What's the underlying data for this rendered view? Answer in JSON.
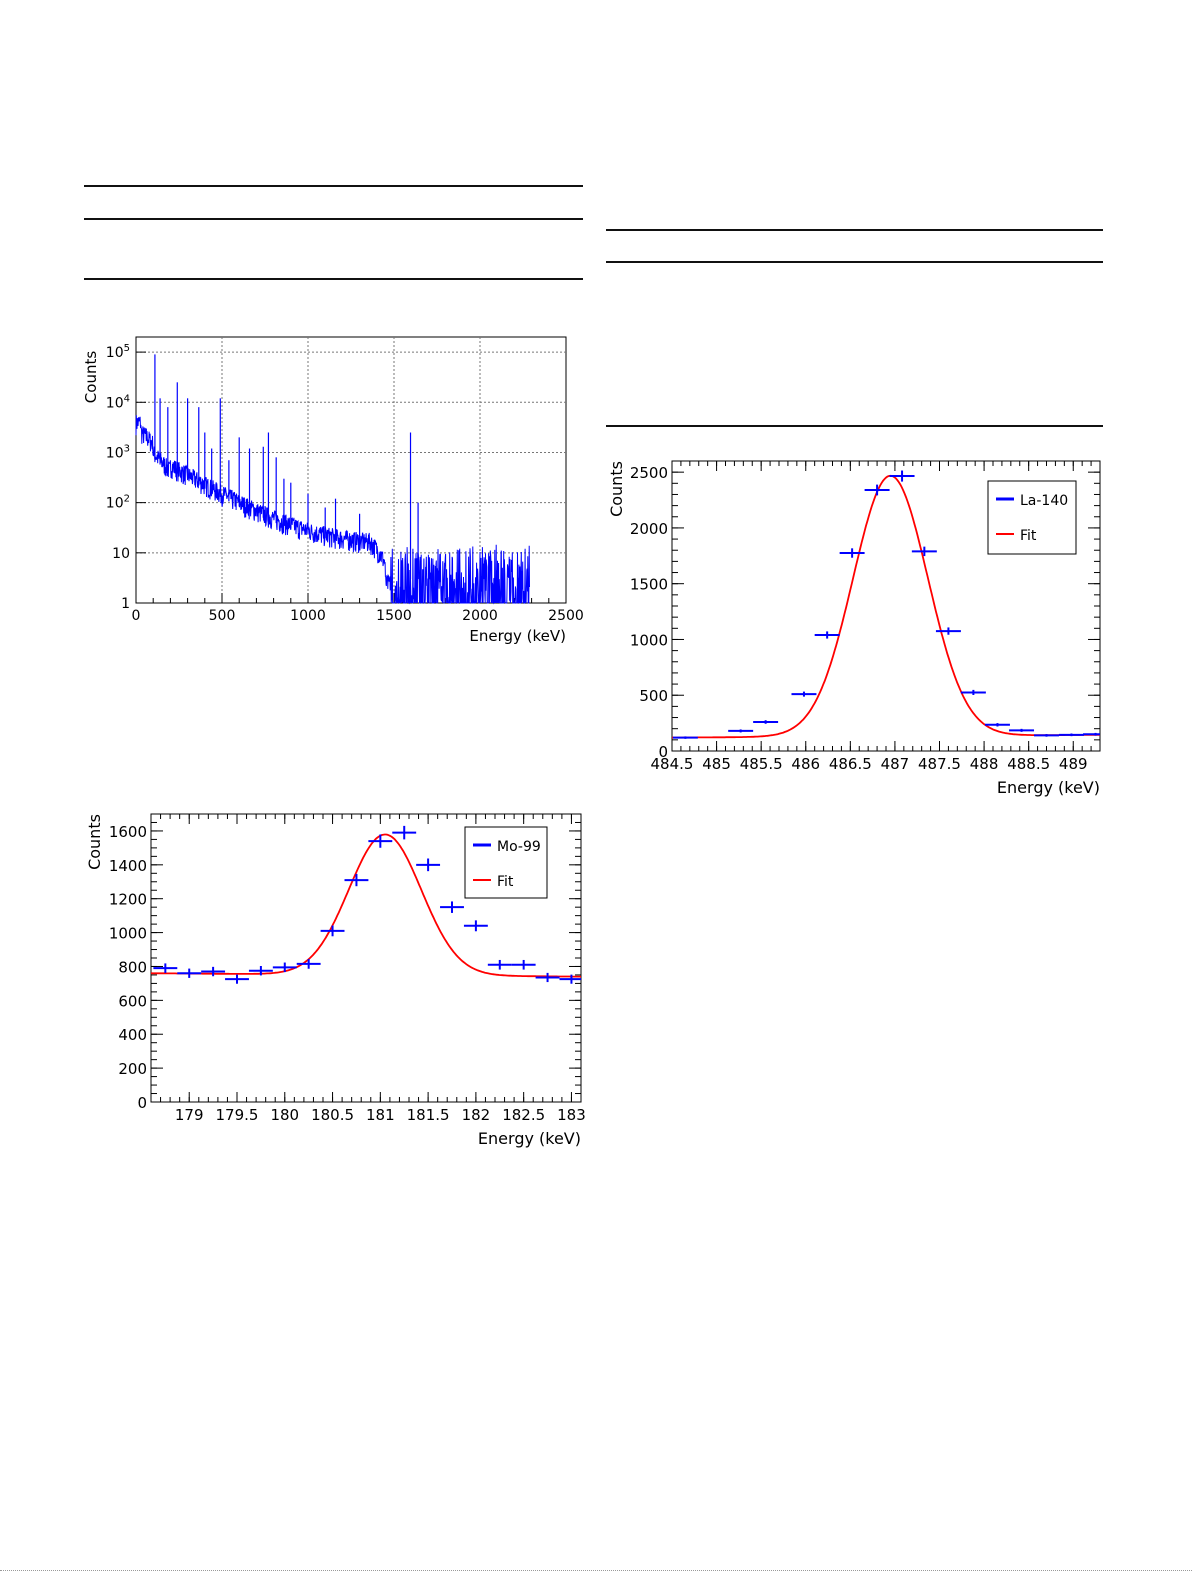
{
  "chart_data": [
    {
      "id": "spectrum",
      "type": "line",
      "ylabel": "Counts",
      "xlabel": "Energy (keV)",
      "xlim": [
        0,
        2500
      ],
      "ylim": [
        1,
        200000
      ],
      "log_y": true,
      "grid": true,
      "x_ticks": [
        "0",
        "500",
        "1000",
        "1500",
        "2000",
        "2500"
      ],
      "y_ticks": [
        "1",
        "10",
        "10^2",
        "10^3",
        "10^4",
        "10^5"
      ],
      "series_color": "#0000ff",
      "peaks": [
        {
          "x": 60,
          "y": 3000
        },
        {
          "x": 110,
          "y": 90000
        },
        {
          "x": 140,
          "y": 12000
        },
        {
          "x": 185,
          "y": 8000
        },
        {
          "x": 240,
          "y": 25000
        },
        {
          "x": 300,
          "y": 12000
        },
        {
          "x": 365,
          "y": 8000
        },
        {
          "x": 400,
          "y": 2500
        },
        {
          "x": 440,
          "y": 1200
        },
        {
          "x": 490,
          "y": 12000
        },
        {
          "x": 540,
          "y": 700
        },
        {
          "x": 600,
          "y": 2000
        },
        {
          "x": 660,
          "y": 1200
        },
        {
          "x": 740,
          "y": 1300
        },
        {
          "x": 770,
          "y": 2500
        },
        {
          "x": 815,
          "y": 800
        },
        {
          "x": 860,
          "y": 300
        },
        {
          "x": 900,
          "y": 250
        },
        {
          "x": 1000,
          "y": 150
        },
        {
          "x": 1100,
          "y": 80
        },
        {
          "x": 1160,
          "y": 120
        },
        {
          "x": 1300,
          "y": 60
        },
        {
          "x": 1596,
          "y": 2500
        },
        {
          "x": 1640,
          "y": 100
        }
      ]
    },
    {
      "id": "mo99",
      "type": "scatter",
      "ylabel": "Counts",
      "xlabel": "Energy (keV)",
      "xlim": [
        178.6,
        183.1
      ],
      "ylim": [
        0,
        1700
      ],
      "x_ticks": [
        179,
        179.5,
        180,
        180.5,
        181,
        181.5,
        182,
        182.5,
        183
      ],
      "y_ticks": [
        0,
        200,
        400,
        600,
        800,
        1000,
        1200,
        1400,
        1600
      ],
      "legend": [
        "Mo-99",
        "Fit"
      ],
      "legend_position": "top-right",
      "point_color": "#0000ff",
      "fit_color": "#ff0000",
      "bin_half_width": 0.125,
      "points": [
        {
          "x": 178.75,
          "y": 790
        },
        {
          "x": 179.0,
          "y": 760
        },
        {
          "x": 179.25,
          "y": 770
        },
        {
          "x": 179.5,
          "y": 725
        },
        {
          "x": 179.75,
          "y": 775
        },
        {
          "x": 180.0,
          "y": 795
        },
        {
          "x": 180.25,
          "y": 815
        },
        {
          "x": 180.5,
          "y": 1010
        },
        {
          "x": 180.75,
          "y": 1310
        },
        {
          "x": 181.0,
          "y": 1540
        },
        {
          "x": 181.25,
          "y": 1590
        },
        {
          "x": 181.5,
          "y": 1400
        },
        {
          "x": 181.75,
          "y": 1150
        },
        {
          "x": 182.0,
          "y": 1040
        },
        {
          "x": 182.25,
          "y": 810
        },
        {
          "x": 182.5,
          "y": 810
        },
        {
          "x": 182.75,
          "y": 735
        },
        {
          "x": 183.0,
          "y": 725
        }
      ],
      "fit": {
        "baseline_left": 760,
        "baseline_right": 740,
        "amplitude": 830,
        "mean": 181.05,
        "sigma": 0.38
      }
    },
    {
      "id": "la140",
      "type": "scatter",
      "ylabel": "Counts",
      "xlabel": "Energy (keV)",
      "xlim": [
        484.5,
        489.3
      ],
      "ylim": [
        0,
        2600
      ],
      "x_ticks": [
        "484.5",
        "485",
        "485.5",
        "486",
        "486.5",
        "487",
        "487.5",
        "488",
        "488.5",
        "489"
      ],
      "y_ticks": [
        0,
        500,
        1000,
        1500,
        2000,
        2500
      ],
      "legend": [
        "La-140",
        "Fit"
      ],
      "legend_position": "top-right",
      "point_color": "#0000ff",
      "fit_color": "#ff0000",
      "bin_half_width": 0.14,
      "points": [
        {
          "x": 484.65,
          "y": 120
        },
        {
          "x": 485.27,
          "y": 180
        },
        {
          "x": 485.55,
          "y": 260
        },
        {
          "x": 485.98,
          "y": 510
        },
        {
          "x": 486.24,
          "y": 1040
        },
        {
          "x": 486.52,
          "y": 1775
        },
        {
          "x": 486.8,
          "y": 2340
        },
        {
          "x": 487.08,
          "y": 2465
        },
        {
          "x": 487.33,
          "y": 1790
        },
        {
          "x": 487.6,
          "y": 1075
        },
        {
          "x": 487.88,
          "y": 525
        },
        {
          "x": 488.15,
          "y": 235
        },
        {
          "x": 488.42,
          "y": 185
        },
        {
          "x": 488.7,
          "y": 140
        },
        {
          "x": 488.98,
          "y": 145
        },
        {
          "x": 489.25,
          "y": 150
        }
      ],
      "fit": {
        "baseline_left": 120,
        "baseline_right": 145,
        "amplitude": 2335,
        "mean": 486.95,
        "sigma": 0.42
      }
    }
  ]
}
